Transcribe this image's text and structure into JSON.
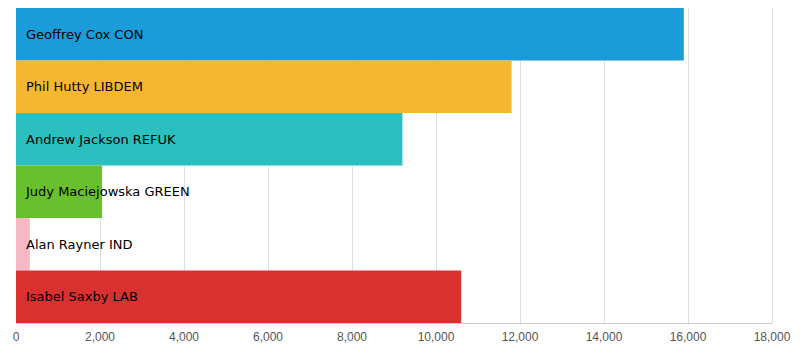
{
  "chart_data": {
    "type": "bar",
    "orientation": "horizontal",
    "categories": [
      "Geoffrey Cox CON",
      "Phil Hutty LIBDEM",
      "Andrew Jackson REFUK",
      "Judy Maciejowska GREEN",
      "Alan Rayner IND",
      "Isabel Saxby LAB"
    ],
    "values": [
      15900,
      11800,
      9200,
      2050,
      330,
      10600
    ],
    "colors": [
      "#1a9cd8",
      "#f5b731",
      "#2bbfbf",
      "#6abf2e",
      "#f5b8c4",
      "#d93030"
    ],
    "xlim": [
      0,
      18000
    ],
    "xticks": [
      0,
      {
        "value": 2000,
        "label": "2,000"
      },
      {
        "value": 4000,
        "label": "4,000"
      },
      {
        "value": 6000,
        "label": "6,000"
      },
      {
        "value": 8000,
        "label": "8,000"
      },
      {
        "value": 10000,
        "label": "10,000"
      },
      {
        "value": 12000,
        "label": "12,000"
      },
      {
        "value": 14000,
        "label": "14,000"
      },
      {
        "value": 16000,
        "label": "16,000"
      },
      {
        "value": 18000,
        "label": "18,000"
      }
    ],
    "grid": true,
    "tick_labels": "x"
  }
}
